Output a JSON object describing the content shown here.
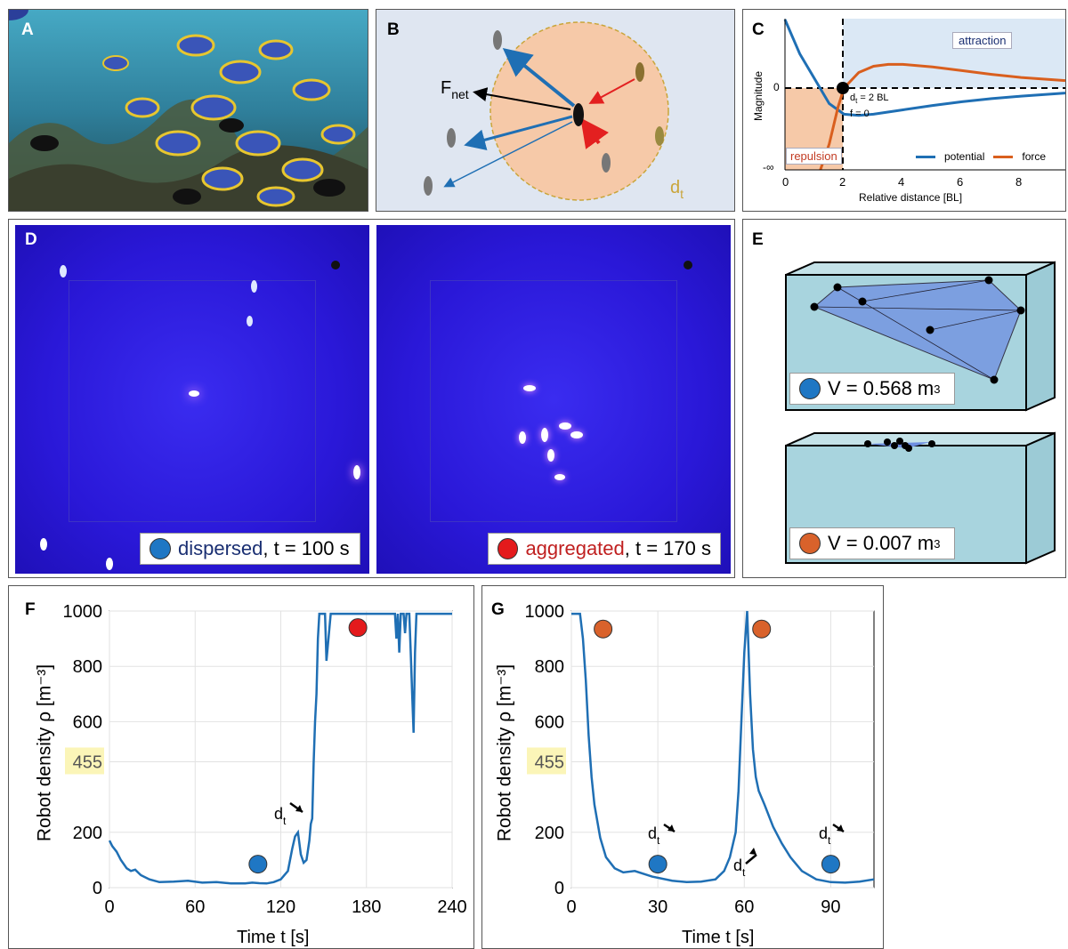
{
  "panels": {
    "A": {
      "label": "A"
    },
    "B": {
      "label": "B",
      "fnet_main": "F",
      "fnet_sub": "net",
      "dt_main": "d",
      "dt_sub": "t"
    },
    "C": {
      "label": "C",
      "ylabel": "Magnitude",
      "xlabel": "Relative distance [BL]",
      "attraction": "attraction",
      "repulsion": "repulsion",
      "annot_line1_main": "d",
      "annot_line1_sub": "t",
      "annot_line1_rest": " = 2 BL",
      "annot_line2": "f = 0",
      "ytick_zero": "0",
      "ytick_neginf": "-∞",
      "xticks": [
        "0",
        "2",
        "4",
        "6",
        "8"
      ],
      "legend": {
        "potential": "potential",
        "force": "force"
      }
    },
    "D": {
      "label": "D",
      "dispersed": {
        "state": "dispersed",
        "rest": ", t = 100 s"
      },
      "aggregated": {
        "state": "aggregated",
        "rest": ", t = 170 s"
      }
    },
    "E": {
      "label": "E",
      "top_volume": {
        "prefix": "V = 0.568 m",
        "sup": "3"
      },
      "bottom_volume": {
        "prefix": "V = 0.007 m",
        "sup": "3"
      }
    },
    "F": {
      "label": "F",
      "ylabel": "Robot density ρ [m⁻³]",
      "xlabel": "Time t [s]",
      "threshold_label": "455",
      "dt_main": "d",
      "dt_sub": "t"
    },
    "G": {
      "label": "G",
      "ylabel": "Robot density ρ [m⁻³]",
      "xlabel": "Time t [s]",
      "threshold_label": "455",
      "dt_main": "d",
      "dt_sub": "t"
    }
  },
  "colors": {
    "blue_line": "#1f6fb4",
    "orange_line": "#d95f1e",
    "dispersed_dot": "#1f77c4",
    "aggregated_dot": "#e41a1c",
    "orange_dot": "#d9622b",
    "repulsion_fill": "#f6c9a8",
    "attraction_fill": "#dbe8f5",
    "tank_fill": "#a8d4de",
    "highlight": "#fbf5b8"
  },
  "chart_data": [
    {
      "id": "C",
      "type": "line",
      "xlabel": "Relative distance [BL]",
      "ylabel": "Magnitude",
      "xlim": [
        0,
        9.5
      ],
      "series": [
        {
          "name": "potential",
          "x": [
            0,
            0.5,
            1,
            1.5,
            2,
            2.5,
            3,
            4,
            5,
            6,
            7,
            8,
            9.5
          ],
          "y": [
            1.1,
            0.55,
            0.15,
            -0.25,
            -0.42,
            -0.44,
            -0.42,
            -0.35,
            -0.28,
            -0.22,
            -0.17,
            -0.13,
            -0.08
          ]
        },
        {
          "name": "force",
          "x": [
            1.2,
            1.5,
            1.8,
            2,
            2.5,
            3,
            3.5,
            4,
            5,
            6,
            7,
            8,
            9.5
          ],
          "y": [
            -1.6,
            -0.9,
            -0.3,
            0,
            0.25,
            0.35,
            0.38,
            0.38,
            0.34,
            0.28,
            0.22,
            0.17,
            0.12
          ]
        }
      ],
      "annotations": [
        "attraction",
        "repulsion",
        "d_t = 2 BL",
        "f = 0"
      ]
    },
    {
      "id": "F",
      "type": "line",
      "xlabel": "Time t [s]",
      "ylabel": "Robot density ρ [m⁻³]",
      "xlim": [
        0,
        240
      ],
      "ylim": [
        0,
        1000
      ],
      "xticks": [
        0,
        60,
        120,
        180,
        240
      ],
      "yticks": [
        0,
        200,
        455,
        600,
        800,
        1000
      ],
      "series": [
        {
          "name": "density",
          "x": [
            0,
            2,
            5,
            8,
            12,
            15,
            18,
            22,
            28,
            35,
            45,
            55,
            65,
            75,
            85,
            95,
            100,
            105,
            110,
            115,
            120,
            125,
            128,
            130,
            132,
            134,
            136,
            138,
            140,
            141,
            142,
            143,
            144,
            145,
            146,
            147,
            148,
            149,
            150,
            151,
            152,
            155,
            160,
            170,
            180,
            190,
            200,
            201,
            202,
            203,
            204,
            205,
            206,
            207,
            208,
            209,
            210,
            211,
            212,
            213,
            214,
            215,
            216,
            217,
            218,
            220,
            230,
            240
          ],
          "y": [
            170,
            150,
            130,
            100,
            70,
            60,
            65,
            45,
            30,
            20,
            22,
            25,
            18,
            20,
            15,
            15,
            18,
            16,
            15,
            20,
            30,
            60,
            140,
            185,
            200,
            120,
            90,
            100,
            170,
            230,
            250,
            450,
            600,
            700,
            900,
            990,
            990,
            990,
            990,
            990,
            820,
            990,
            990,
            990,
            990,
            990,
            990,
            900,
            990,
            850,
            990,
            990,
            990,
            920,
            990,
            990,
            990,
            850,
            700,
            560,
            850,
            990,
            990,
            990,
            990,
            990,
            990,
            990
          ]
        }
      ],
      "markers": [
        {
          "state": "dispersed",
          "x": 104,
          "y": 85
        },
        {
          "state": "aggregated",
          "x": 174,
          "y": 940
        }
      ],
      "annotations": [
        "455",
        "d_t"
      ]
    },
    {
      "id": "G",
      "type": "line",
      "xlabel": "Time t [s]",
      "ylabel": "Robot density ρ [m⁻³]",
      "xlim": [
        0,
        105
      ],
      "ylim": [
        0,
        1000
      ],
      "xticks": [
        0,
        30,
        60,
        90
      ],
      "yticks": [
        0,
        200,
        455,
        600,
        800,
        1000
      ],
      "series": [
        {
          "name": "density",
          "x": [
            0,
            3,
            4,
            5,
            6,
            7,
            8,
            10,
            12,
            15,
            18,
            22,
            28,
            35,
            40,
            45,
            50,
            53,
            55,
            57,
            58,
            59,
            60,
            61,
            62,
            63,
            64,
            65,
            67,
            70,
            73,
            76,
            80,
            85,
            90,
            95,
            100,
            105
          ],
          "y": [
            990,
            990,
            900,
            750,
            550,
            400,
            300,
            180,
            110,
            70,
            55,
            60,
            40,
            25,
            20,
            22,
            30,
            60,
            110,
            200,
            350,
            600,
            850,
            1000,
            700,
            500,
            400,
            350,
            300,
            220,
            160,
            110,
            60,
            30,
            20,
            18,
            22,
            30
          ]
        }
      ],
      "markers": [
        {
          "state": "aggregated",
          "x": 11,
          "y": 935
        },
        {
          "state": "dispersed",
          "x": 30,
          "y": 85
        },
        {
          "state": "aggregated",
          "x": 66,
          "y": 935
        },
        {
          "state": "dispersed",
          "x": 90,
          "y": 85
        }
      ],
      "annotations": [
        "455",
        "d_t",
        "d_t",
        "d_t"
      ]
    }
  ]
}
